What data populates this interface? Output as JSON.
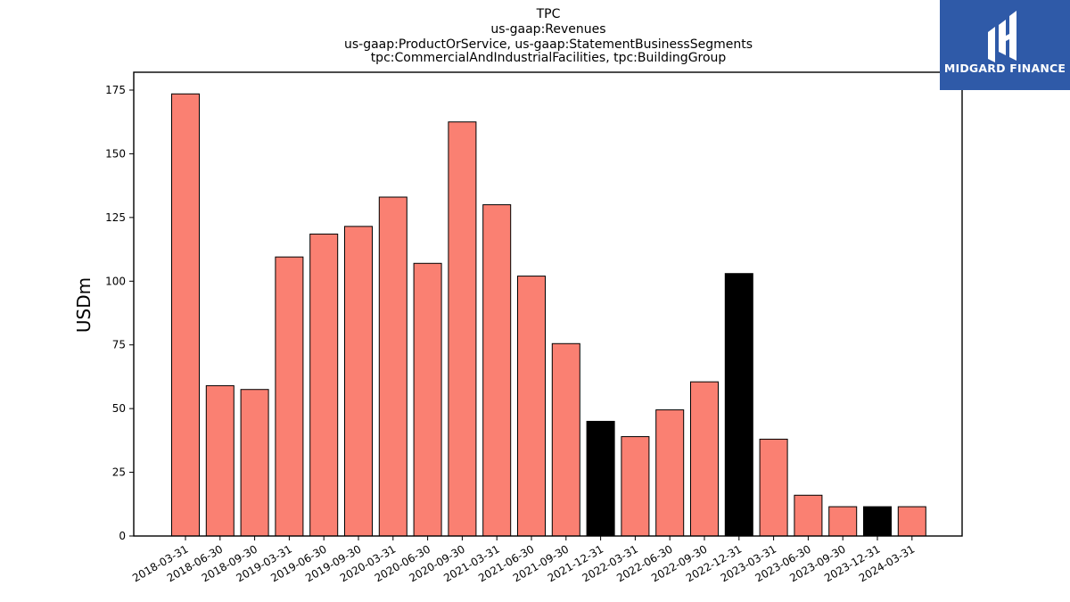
{
  "logo": {
    "text": "MIDGARD FINANCE",
    "bg_color": "#2f5aa8"
  },
  "chart_data": {
    "type": "bar",
    "title_lines": [
      "TPC",
      "us-gaap:Revenues",
      "us-gaap:ProductOrService, us-gaap:StatementBusinessSegments",
      "tpc:CommercialAndIndustrialFacilities, tpc:BuildingGroup"
    ],
    "xlabel": "",
    "ylabel": "USDm",
    "ylim": [
      0,
      182
    ],
    "yticks": [
      0,
      25,
      50,
      75,
      100,
      125,
      150,
      175
    ],
    "grid": false,
    "categories": [
      "2018-03-31",
      "2018-06-30",
      "2018-09-30",
      "2019-03-31",
      "2019-06-30",
      "2019-09-30",
      "2020-03-31",
      "2020-06-30",
      "2020-09-30",
      "2021-03-31",
      "2021-06-30",
      "2021-09-30",
      "2021-12-31",
      "2022-03-31",
      "2022-06-30",
      "2022-09-30",
      "2022-12-31",
      "2023-03-31",
      "2023-06-30",
      "2023-09-30",
      "2023-12-31",
      "2024-03-31"
    ],
    "values": [
      173.5,
      59,
      57.5,
      109.5,
      118.5,
      121.5,
      133,
      107,
      162.5,
      130,
      102,
      75.5,
      45,
      39,
      49.5,
      60.5,
      103,
      38,
      16,
      11.5,
      11.5,
      11.5
    ],
    "bar_colors": [
      "#fa8072",
      "#fa8072",
      "#fa8072",
      "#fa8072",
      "#fa8072",
      "#fa8072",
      "#fa8072",
      "#fa8072",
      "#fa8072",
      "#fa8072",
      "#fa8072",
      "#fa8072",
      "#000000",
      "#fa8072",
      "#fa8072",
      "#fa8072",
      "#000000",
      "#fa8072",
      "#fa8072",
      "#fa8072",
      "#000000",
      "#fa8072"
    ]
  }
}
